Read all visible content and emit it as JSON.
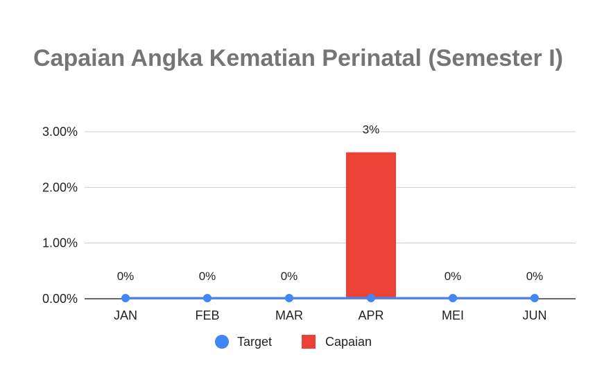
{
  "chart_data": {
    "type": "bar",
    "title": "Capaian Angka Kematian Perinatal (Semester I)",
    "categories": [
      "JAN",
      "FEB",
      "MAR",
      "APR",
      "MEI",
      "JUN"
    ],
    "y_ticks": [
      "0.00%",
      "1.00%",
      "2.00%",
      "3.00%"
    ],
    "ylim": [
      0,
      3.0
    ],
    "grid": true,
    "legend_position": "bottom",
    "series": [
      {
        "name": "Capaian",
        "type": "bar",
        "color": "#ea4335",
        "values": [
          0,
          0,
          0,
          2.63,
          0,
          0
        ],
        "data_labels": [
          "0%",
          "0%",
          "0%",
          "3%",
          "0%",
          "0%"
        ]
      },
      {
        "name": "Target",
        "type": "line",
        "color": "#4285f4",
        "values": [
          0,
          0,
          0,
          0,
          0,
          0
        ]
      }
    ]
  }
}
